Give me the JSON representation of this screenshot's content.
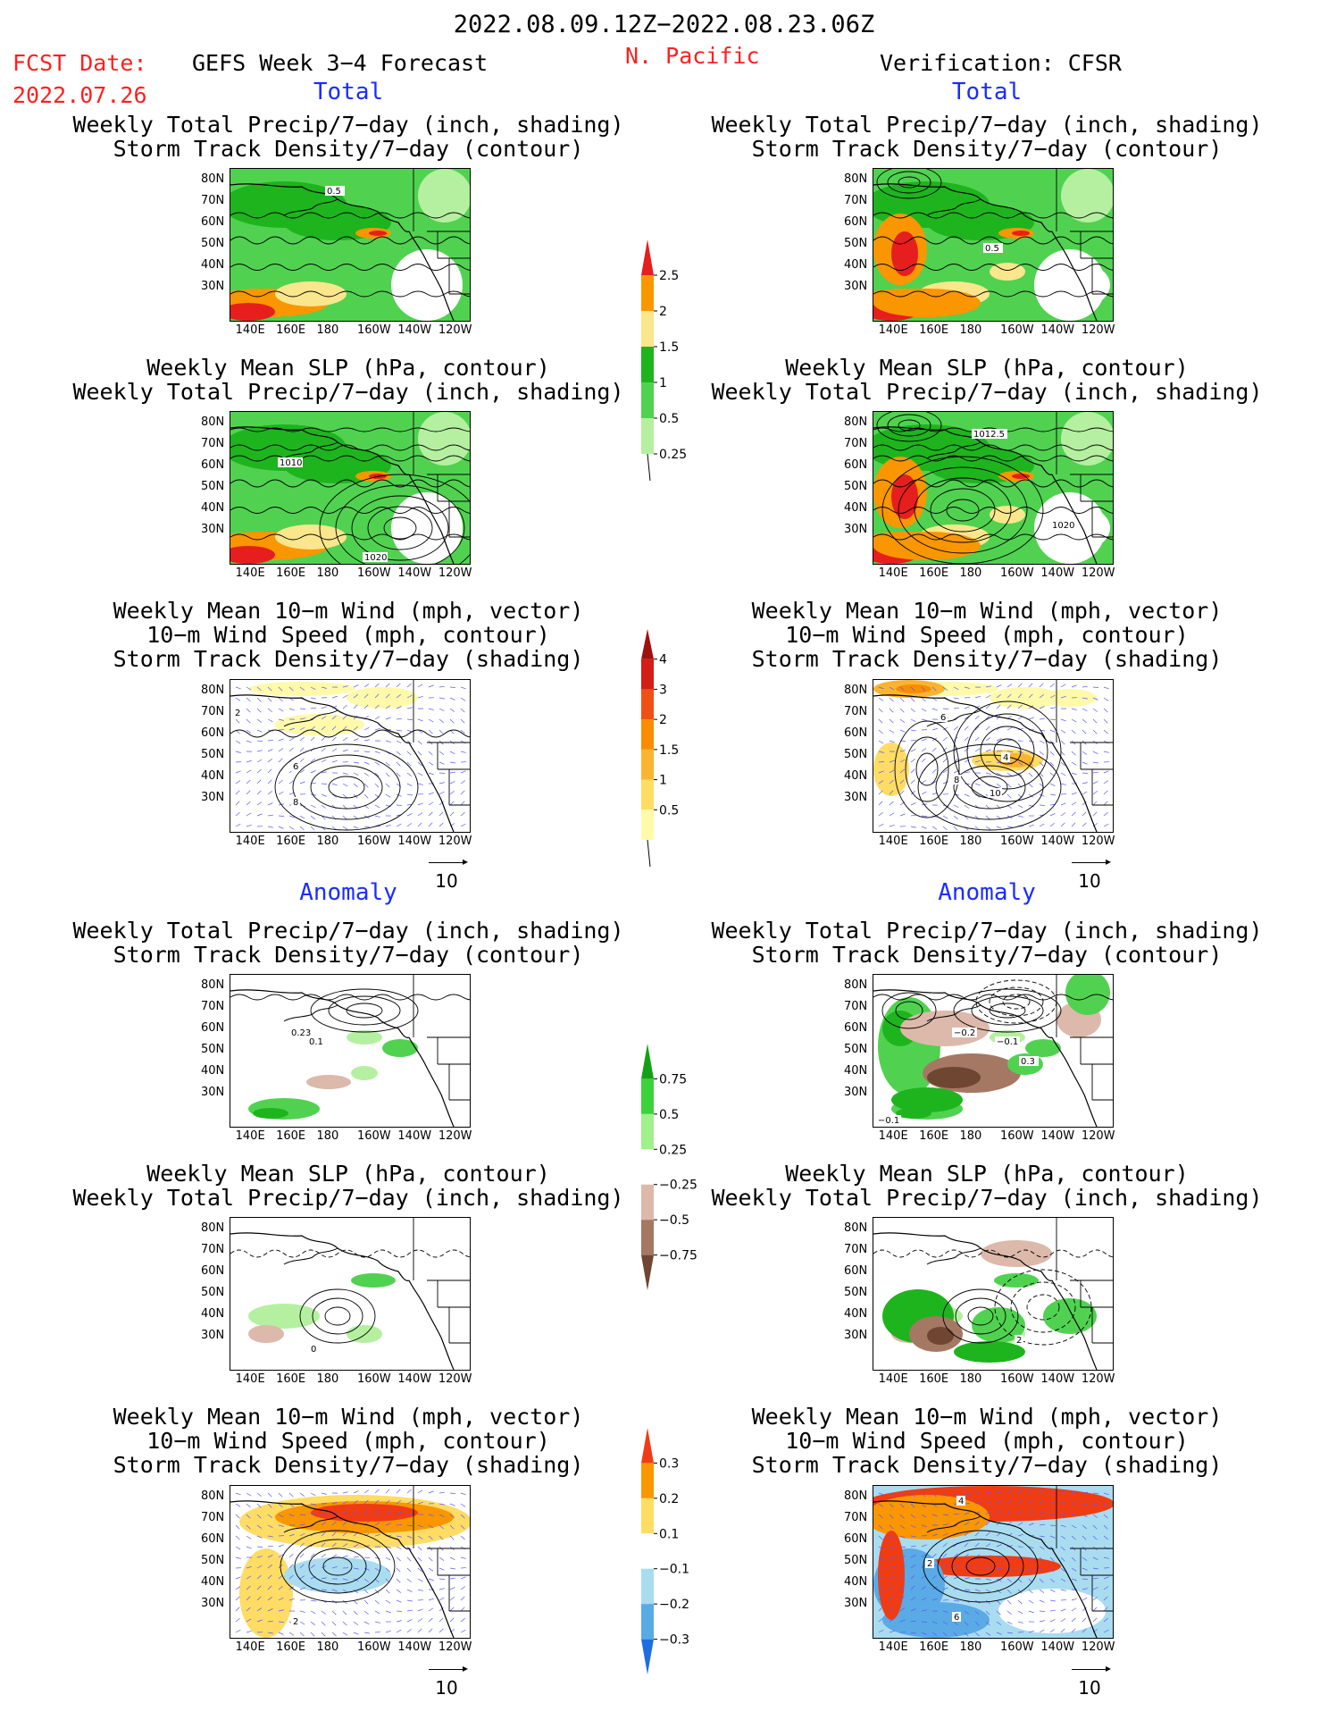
{
  "header": {
    "date_range": "2022.08.09.12Z−2022.08.23.06Z",
    "fcst_label": "FCST Date:",
    "fcst_date": "2022.07.26",
    "forecast_name": "GEFS Week 3−4 Forecast",
    "region": "N. Pacific",
    "verification": "Verification: CFSR"
  },
  "sections": {
    "total": "Total",
    "anomaly": "Anomaly"
  },
  "titles": {
    "precip_track": [
      "Weekly Total Precip/7−day (inch, shading)",
      "Storm Track Density/7−day (contour)"
    ],
    "slp_precip": [
      "Weekly Mean SLP (hPa, contour)",
      "Weekly Total Precip/7−day (inch, shading)"
    ],
    "wind": [
      "Weekly Mean 10−m Wind (mph, vector)",
      "10−m Wind Speed (mph, contour)",
      "Storm Track Density/7−day (shading)"
    ]
  },
  "axes": {
    "lat_ticks": [
      "80N",
      "70N",
      "60N",
      "50N",
      "40N",
      "30N"
    ],
    "lon_ticks": [
      "140E",
      "160E",
      "180",
      "160W",
      "140W",
      "120W"
    ]
  },
  "vector_ref": "10",
  "colorbars": {
    "precip_total": {
      "levels": [
        "0.25",
        "0.5",
        "1",
        "1.5",
        "2",
        "2.5"
      ],
      "colors": [
        "#b4f0a0",
        "#50d250",
        "#1eb41e",
        "#fae68c",
        "#fa9600",
        "#e61e1e"
      ]
    },
    "track_total": {
      "levels": [
        "0.5",
        "1",
        "1.5",
        "2",
        "3",
        "4"
      ],
      "colors": [
        "#fffaaa",
        "#ffdc64",
        "#fab432",
        "#fa8c00",
        "#f05014",
        "#d21e14",
        "#a01010"
      ]
    },
    "precip_anom": {
      "levels": [
        "0.75",
        "0.5",
        "0.25",
        "−0.25",
        "−0.5",
        "−0.75"
      ],
      "colors": [
        "#14a014",
        "#3cd23c",
        "#a0f08c",
        "#ffffff",
        "#dcb9aa",
        "#a57864",
        "#6e4632"
      ]
    },
    "track_anom": {
      "levels": [
        "0.3",
        "0.2",
        "0.1",
        "−0.1",
        "−0.2",
        "−0.3"
      ],
      "colors": [
        "#f03c14",
        "#fa9600",
        "#ffdc64",
        "#ffffff",
        "#aadcf0",
        "#5aaae6",
        "#1e6ee1"
      ]
    }
  },
  "panels": {
    "p1": {
      "labels": [
        "0.5"
      ]
    },
    "p2": {
      "labels": [
        "0.5"
      ]
    },
    "p3": {
      "labels": [
        "1010",
        "1020"
      ]
    },
    "p4": {
      "labels": [
        "1012.5",
        "1020"
      ]
    },
    "p5": {
      "labels": [
        "2",
        "6",
        "8"
      ]
    },
    "p6": {
      "labels": [
        "6",
        "8",
        "10",
        "4"
      ]
    },
    "p7": {
      "labels": [
        "0.23",
        "0.1"
      ]
    },
    "p8": {
      "labels": [
        "−0.2",
        "−0.1",
        "0.3",
        "−0.1"
      ]
    },
    "p9": {
      "labels": [
        "0"
      ]
    },
    "p10": {
      "labels": [
        "2"
      ]
    },
    "p11": {
      "labels": [
        "2"
      ]
    },
    "p12": {
      "labels": [
        "4",
        "2",
        "6"
      ]
    }
  },
  "chart_data": [
    {
      "type": "heatmap",
      "title": "Weekly Total Precip/7−day (inch, shading) / Storm Track Density/7−day (contour)",
      "panel": "GEFS Week 3−4 Forecast, Total",
      "contour_labels": [
        "0.5"
      ]
    },
    {
      "type": "heatmap",
      "title": "Weekly Total Precip/7−day (inch, shading) / Storm Track Density/7−day (contour)",
      "panel": "Verification: CFSR, Total",
      "contour_labels": [
        "0.5"
      ]
    },
    {
      "type": "heatmap",
      "title": "Weekly Mean SLP (hPa, contour) / Weekly Total Precip/7−day (inch, shading)",
      "panel": "GEFS Week 3−4 Forecast, Total",
      "contour_labels": [
        "1010",
        "1020"
      ]
    },
    {
      "type": "heatmap",
      "title": "Weekly Mean SLP (hPa, contour) / Weekly Total Precip/7−day (inch, shading)",
      "panel": "Verification: CFSR, Total",
      "contour_labels": [
        "1012.5",
        "1020"
      ]
    },
    {
      "type": "heatmap",
      "title": "Weekly Mean 10−m Wind (mph, vector) / 10−m Wind Speed (mph, contour) / Storm Track Density/7−day (shading)",
      "panel": "GEFS Week 3−4 Forecast, Total",
      "contour_labels": [
        "2",
        "6",
        "8"
      ]
    },
    {
      "type": "heatmap",
      "title": "Weekly Mean 10−m Wind (mph, vector) / 10−m Wind Speed (mph, contour) / Storm Track Density/7−day (shading)",
      "panel": "Verification: CFSR, Total",
      "contour_labels": [
        "6",
        "8",
        "10",
        "4"
      ]
    },
    {
      "type": "heatmap",
      "title": "Weekly Total Precip/7−day (inch, shading) / Storm Track Density/7−day (contour)",
      "panel": "GEFS Week 3−4 Forecast, Anomaly",
      "contour_labels": [
        "0.23",
        "0.1"
      ]
    },
    {
      "type": "heatmap",
      "title": "Weekly Total Precip/7−day (inch, shading) / Storm Track Density/7−day (contour)",
      "panel": "Verification: CFSR, Anomaly",
      "contour_labels": [
        "−0.2",
        "−0.1",
        "0.3",
        "−0.1"
      ]
    },
    {
      "type": "heatmap",
      "title": "Weekly Mean SLP (hPa, contour) / Weekly Total Precip/7−day (inch, shading)",
      "panel": "GEFS Week 3−4 Forecast, Anomaly",
      "contour_labels": [
        "0"
      ]
    },
    {
      "type": "heatmap",
      "title": "Weekly Mean SLP (hPa, contour) / Weekly Total Precip/7−day (inch, shading)",
      "panel": "Verification: CFSR, Anomaly",
      "contour_labels": [
        "2"
      ]
    },
    {
      "type": "heatmap",
      "title": "Weekly Mean 10−m Wind (mph, vector) / 10−m Wind Speed (mph, contour) / Storm Track Density/7−day (shading)",
      "panel": "GEFS Week 3−4 Forecast, Anomaly",
      "contour_labels": [
        "2"
      ]
    },
    {
      "type": "heatmap",
      "title": "Weekly Mean 10−m Wind (mph, vector) / 10−m Wind Speed (mph, contour) / Storm Track Density/7−day (shading)",
      "panel": "Verification: CFSR, Anomaly",
      "contour_labels": [
        "4",
        "2",
        "6"
      ]
    }
  ]
}
